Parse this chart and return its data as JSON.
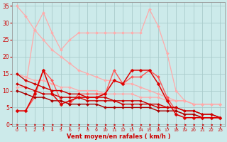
{
  "background_color": "#cceaea",
  "grid_color": "#aacccc",
  "xlabel": "Vent moyen/en rafales ( km/h )",
  "xlabel_color": "#cc0000",
  "tick_color": "#cc0000",
  "x_ticks": [
    0,
    1,
    2,
    3,
    4,
    5,
    6,
    7,
    8,
    9,
    10,
    11,
    12,
    13,
    14,
    15,
    16,
    17,
    18,
    19,
    20,
    21,
    22,
    23
  ],
  "ylim": [
    -0.5,
    36
  ],
  "yticks": [
    0,
    5,
    10,
    15,
    20,
    25,
    30,
    35
  ],
  "series": [
    {
      "color": "#ffaaaa",
      "linewidth": 0.9,
      "marker": "D",
      "markersize": 2,
      "values": [
        35,
        32,
        28,
        25,
        22,
        20,
        18,
        16,
        15,
        14,
        13,
        13,
        12,
        12,
        11,
        10,
        9,
        8,
        7,
        7,
        6,
        6,
        6,
        6
      ]
    },
    {
      "color": "#ffaaaa",
      "linewidth": 0.9,
      "marker": "D",
      "markersize": 2,
      "values": [
        15,
        14,
        13,
        13,
        12,
        11,
        11,
        10,
        10,
        10,
        9,
        9,
        9,
        9,
        8,
        8,
        8,
        7,
        7,
        7,
        6,
        6,
        6,
        6
      ]
    },
    {
      "color": "#ffaaaa",
      "linewidth": 0.9,
      "marker": "D",
      "markersize": 2,
      "values": [
        11,
        11,
        28,
        33,
        27,
        22,
        25,
        27,
        27,
        27,
        27,
        27,
        27,
        27,
        27,
        34,
        29,
        21,
        10,
        7,
        6,
        6,
        6,
        6
      ]
    },
    {
      "color": "#ff5555",
      "linewidth": 1.0,
      "marker": "D",
      "markersize": 2,
      "values": [
        4,
        4,
        8,
        16,
        13,
        7,
        6,
        9,
        9,
        9,
        9,
        16,
        12,
        14,
        14,
        16,
        14,
        8,
        4,
        3,
        3,
        2,
        2,
        2
      ]
    },
    {
      "color": "#cc0000",
      "linewidth": 1.0,
      "marker": "D",
      "markersize": 2,
      "values": [
        15,
        13,
        12,
        11,
        10,
        10,
        9,
        9,
        8,
        8,
        8,
        7,
        7,
        7,
        7,
        6,
        6,
        5,
        5,
        4,
        4,
        3,
        3,
        2
      ]
    },
    {
      "color": "#cc0000",
      "linewidth": 1.0,
      "marker": "D",
      "markersize": 2,
      "values": [
        12,
        11,
        10,
        9,
        9,
        8,
        8,
        8,
        7,
        7,
        7,
        7,
        6,
        6,
        6,
        6,
        5,
        5,
        5,
        4,
        4,
        3,
        3,
        2
      ]
    },
    {
      "color": "#aa0000",
      "linewidth": 1.0,
      "marker": "D",
      "markersize": 2,
      "values": [
        10,
        9,
        8,
        8,
        7,
        7,
        6,
        6,
        6,
        6,
        5,
        5,
        5,
        5,
        5,
        5,
        4,
        4,
        4,
        3,
        3,
        2,
        2,
        2
      ]
    },
    {
      "color": "#dd0000",
      "linewidth": 1.1,
      "marker": "D",
      "markersize": 2.5,
      "values": [
        4,
        4,
        9,
        16,
        9,
        6,
        7,
        8,
        8,
        8,
        9,
        13,
        12,
        16,
        16,
        16,
        12,
        7,
        3,
        2,
        2,
        2,
        2,
        2
      ]
    }
  ],
  "arrow_color": "#cc0000"
}
